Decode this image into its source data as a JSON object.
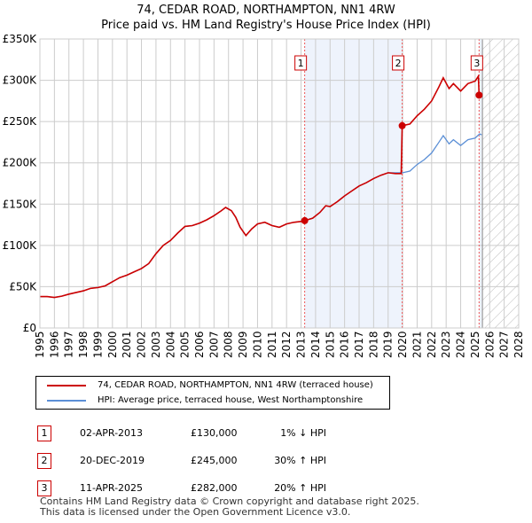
{
  "title": "74, CEDAR ROAD, NORTHAMPTON, NN1 4RW",
  "subtitle": "Price paid vs. HM Land Registry's House Price Index (HPI)",
  "chart_data": {
    "type": "line",
    "xlim": [
      1995,
      2028
    ],
    "ylim": [
      0,
      350000
    ],
    "x_ticks": [
      "1995",
      "1996",
      "1997",
      "1998",
      "1999",
      "2000",
      "2001",
      "2002",
      "2003",
      "2004",
      "2005",
      "2006",
      "2007",
      "2008",
      "2009",
      "2010",
      "2011",
      "2012",
      "2013",
      "2014",
      "2015",
      "2016",
      "2017",
      "2018",
      "2019",
      "2020",
      "2021",
      "2022",
      "2023",
      "2024",
      "2025",
      "2026",
      "2027",
      "2028"
    ],
    "y_ticks": [
      {
        "v": 0,
        "label": "£0"
      },
      {
        "v": 50000,
        "label": "£50K"
      },
      {
        "v": 100000,
        "label": "£100K"
      },
      {
        "v": 150000,
        "label": "£150K"
      },
      {
        "v": 200000,
        "label": "£200K"
      },
      {
        "v": 250000,
        "label": "£250K"
      },
      {
        "v": 300000,
        "label": "£300K"
      },
      {
        "v": 350000,
        "label": "£350K"
      }
    ],
    "grid": true,
    "forecast_start": 2025.5,
    "series": [
      {
        "name": "74, CEDAR ROAD, NORTHAMPTON, NN1 4RW (terraced house)",
        "color": "#cc0000",
        "x": [
          1995,
          1995.5,
          1996,
          1996.5,
          1997,
          1997.5,
          1998,
          1998.5,
          1999,
          1999.5,
          2000,
          2000.5,
          2001,
          2001.5,
          2002,
          2002.5,
          2003,
          2003.5,
          2004,
          2004.5,
          2005,
          2005.5,
          2006,
          2006.5,
          2007,
          2007.5,
          2007.8,
          2008.2,
          2008.5,
          2008.8,
          2009.2,
          2009.6,
          2010,
          2010.5,
          2011,
          2011.5,
          2012,
          2012.5,
          2013,
          2013.25,
          2013.8,
          2014.3,
          2014.7,
          2015,
          2015.5,
          2016,
          2016.5,
          2017,
          2017.5,
          2018,
          2018.5,
          2019,
          2019.5,
          2019.9,
          2019.97,
          2020.5,
          2021,
          2021.5,
          2022,
          2022.5,
          2022.8,
          2023.2,
          2023.5,
          2024,
          2024.5,
          2025,
          2025.22,
          2025.27
        ],
        "y": [
          38000,
          38000,
          37000,
          38500,
          41000,
          43000,
          45000,
          48000,
          49000,
          51000,
          56000,
          61000,
          64000,
          68000,
          72000,
          78000,
          90000,
          100000,
          106000,
          115000,
          123000,
          124000,
          127000,
          131000,
          136000,
          142000,
          146000,
          142000,
          134000,
          122000,
          112000,
          120000,
          126000,
          128000,
          124000,
          122000,
          126000,
          128000,
          129000,
          130000,
          133000,
          140000,
          148000,
          147000,
          153000,
          160000,
          166000,
          172000,
          176000,
          181000,
          185000,
          188000,
          187000,
          187000,
          245000,
          247000,
          257000,
          265000,
          275000,
          292000,
          303000,
          290000,
          296000,
          287000,
          296000,
          299000,
          305000,
          282000
        ]
      },
      {
        "name": "HPI: Average price, terraced house, West Northamptonshire",
        "color": "#5b8fd6",
        "x": [
          1995,
          1995.5,
          1996,
          1996.5,
          1997,
          1997.5,
          1998,
          1998.5,
          1999,
          1999.5,
          2000,
          2000.5,
          2001,
          2001.5,
          2002,
          2002.5,
          2003,
          2003.5,
          2004,
          2004.5,
          2005,
          2005.5,
          2006,
          2006.5,
          2007,
          2007.5,
          2007.8,
          2008.2,
          2008.5,
          2008.8,
          2009.2,
          2009.6,
          2010,
          2010.5,
          2011,
          2011.5,
          2012,
          2012.5,
          2013,
          2013.25,
          2013.8,
          2014.3,
          2014.7,
          2015,
          2015.5,
          2016,
          2016.5,
          2017,
          2017.5,
          2018,
          2018.5,
          2019,
          2019.5,
          2020,
          2020.5,
          2021,
          2021.5,
          2022,
          2022.5,
          2022.8,
          2023.2,
          2023.5,
          2024,
          2024.5,
          2025,
          2025.3,
          2025.45
        ],
        "y": [
          38000,
          38000,
          37000,
          38500,
          41000,
          43000,
          45000,
          48000,
          49000,
          51000,
          56000,
          61000,
          64000,
          68000,
          72000,
          78000,
          90000,
          100000,
          106000,
          115000,
          123000,
          124000,
          127000,
          131000,
          136000,
          142000,
          146000,
          142000,
          134000,
          122000,
          112000,
          120000,
          126000,
          128000,
          124000,
          122000,
          126000,
          128000,
          129000,
          130000,
          133000,
          140000,
          148000,
          147000,
          153000,
          160000,
          166000,
          172000,
          176000,
          181000,
          185000,
          188000,
          188000,
          188000,
          190000,
          198000,
          204000,
          212000,
          225000,
          233000,
          223000,
          228000,
          221000,
          228000,
          230000,
          235000,
          234000
        ]
      }
    ],
    "sales": [
      {
        "n": "1",
        "x": 2013.25,
        "y": 130000
      },
      {
        "n": "2",
        "x": 2019.97,
        "y": 245000
      },
      {
        "n": "3",
        "x": 2025.27,
        "y": 282000
      }
    ],
    "shaded": [
      [
        2013.25,
        2019.97
      ],
      [
        2025.27,
        2025.5
      ]
    ]
  },
  "legend": [
    {
      "label": "74, CEDAR ROAD, NORTHAMPTON, NN1 4RW (terraced house)",
      "color": "#cc0000"
    },
    {
      "label": "HPI: Average price, terraced house, West Northamptonshire",
      "color": "#5b8fd6"
    }
  ],
  "transactions": [
    {
      "n": "1",
      "date": "02-APR-2013",
      "price": "£130,000",
      "hpi": "1% ↓ HPI"
    },
    {
      "n": "2",
      "date": "20-DEC-2019",
      "price": "£245,000",
      "hpi": "30% ↑ HPI"
    },
    {
      "n": "3",
      "date": "11-APR-2025",
      "price": "£282,000",
      "hpi": "20% ↑ HPI"
    }
  ],
  "footer": [
    "Contains HM Land Registry data © Crown copyright and database right 2025.",
    "This data is licensed under the Open Government Licence v3.0."
  ]
}
